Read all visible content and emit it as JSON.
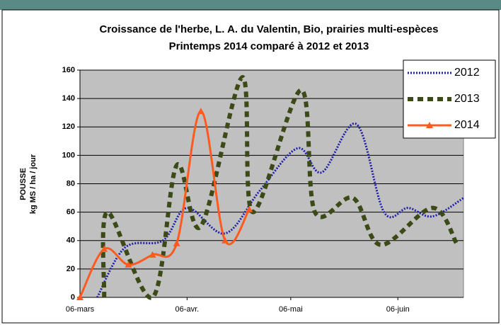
{
  "chart_data": {
    "type": "line",
    "title": "Croissance de l'herbe, L. A. du Valentin, Bio, prairies multi-espèces",
    "subtitle": "Printemps 2014 comparé à 2012 et 2013",
    "y_label": [
      "POUSSE",
      "kg MS / ha / jour"
    ],
    "xlim": [
      65,
      176
    ],
    "xticks": [
      {
        "value": 65,
        "label": "06-mars"
      },
      {
        "value": 96,
        "label": "06-avr."
      },
      {
        "value": 126,
        "label": "06-mai"
      },
      {
        "value": 157,
        "label": "06-juin"
      }
    ],
    "ylim": [
      0,
      160
    ],
    "yticks": [
      0,
      20,
      40,
      60,
      80,
      100,
      120,
      140,
      160
    ],
    "grid": true,
    "legend": "upper right",
    "series": [
      {
        "name": "2012",
        "color": "#1f1fa8",
        "style": "dotted",
        "x": [
          70,
          78,
          89,
          96,
          107,
          117,
          128,
          135,
          145,
          153,
          160,
          167,
          176
        ],
        "values": [
          0,
          35,
          40,
          63,
          45,
          75,
          105,
          88,
          122,
          60,
          63,
          57,
          70
        ]
      },
      {
        "name": "2013",
        "color": "#3b4a16",
        "style": "dashed",
        "x": [
          72,
          73,
          86,
          93,
          100,
          112,
          115,
          129,
          133,
          144,
          152,
          167,
          174
        ],
        "values": [
          0,
          60,
          0,
          93,
          50,
          155,
          60,
          146,
          60,
          70,
          37,
          63,
          38
        ]
      },
      {
        "name": "2014",
        "color": "#ff5a1f",
        "style": "solid",
        "marker": "triangle",
        "x": [
          65,
          72,
          79,
          86,
          93,
          100,
          107,
          114
        ],
        "values": [
          0,
          34,
          23,
          30,
          38,
          131,
          40,
          62
        ]
      }
    ]
  }
}
